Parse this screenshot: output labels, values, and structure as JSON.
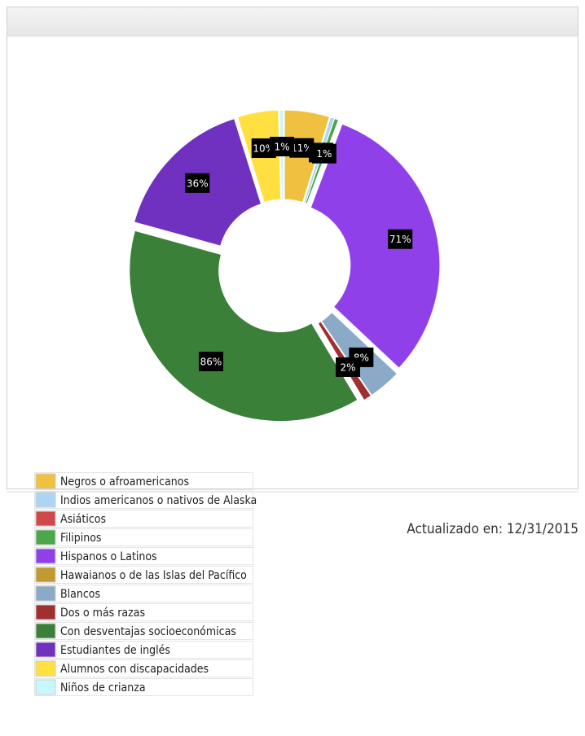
{
  "chart_data": {
    "type": "pie",
    "donut": true,
    "categories": [
      "Negros o afroamericanos",
      "Indios americanos o nativos de Alaska",
      "Asiáticos",
      "Filipinos",
      "Hispanos o Latinos",
      "Hawaianos o de las Islas del Pacífico",
      "Blancos",
      "Dos o más razas",
      "Con desventajas socioeconómicas",
      "Estudiantes de inglés",
      "Alumnos con discapacidades",
      "Niños de crianza"
    ],
    "values": [
      11,
      1,
      0,
      1,
      71,
      0,
      8,
      2,
      86,
      36,
      10,
      1
    ],
    "value_labels": [
      "11%",
      "1%",
      null,
      "1%",
      "71%",
      null,
      "8%",
      "2%",
      "86%",
      "36%",
      "10%",
      "1%"
    ],
    "colors": [
      "#f0c040",
      "#aed4f5",
      "#d04848",
      "#4aa84a",
      "#9040e8",
      "#c09a30",
      "#8aaac8",
      "#a03030",
      "#3a8038",
      "#7030c0",
      "#ffe040",
      "#c8f8ff"
    ],
    "legend": "bottom-left"
  },
  "footer": {
    "updated": "Actualizado en:  12/31/2015"
  }
}
